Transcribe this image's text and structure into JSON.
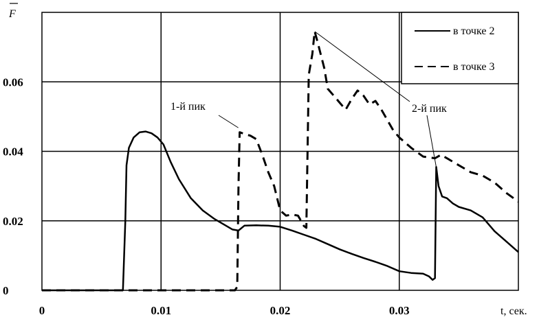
{
  "chart_data": {
    "type": "line",
    "ylabel": "F",
    "xlabel": "t, сек.",
    "xlim": [
      0,
      0.04
    ],
    "ylim": [
      0,
      0.08
    ],
    "x_ticks": [
      0,
      0.01,
      0.02,
      0.03
    ],
    "x_tick_labels": [
      "0",
      "0.01",
      "0.02",
      "0.03"
    ],
    "y_ticks": [
      0,
      0.02,
      0.04,
      0.06
    ],
    "y_tick_labels": [
      "0",
      "0.02",
      "0.04",
      "0.06"
    ],
    "grid": true,
    "legend_position": "top-right",
    "annotations": [
      {
        "text": "1-й пик",
        "target_series": 1,
        "target": [
          0.0166,
          0.046
        ]
      },
      {
        "text": "2-й пик",
        "targets": [
          [
            0.0229,
            0.0745
          ],
          [
            0.0331,
            0.0355
          ]
        ]
      }
    ],
    "series": [
      {
        "name": "в точке 2",
        "style": "solid",
        "x": [
          0,
          0.0068,
          0.007,
          0.0071,
          0.0073,
          0.0077,
          0.0082,
          0.0087,
          0.0092,
          0.0097,
          0.0102,
          0.0108,
          0.0115,
          0.0125,
          0.0135,
          0.0145,
          0.0155,
          0.016,
          0.0165,
          0.017,
          0.018,
          0.019,
          0.02,
          0.021,
          0.022,
          0.023,
          0.024,
          0.025,
          0.026,
          0.027,
          0.028,
          0.029,
          0.03,
          0.031,
          0.032,
          0.0325,
          0.0328,
          0.033,
          0.0331,
          0.0333,
          0.0336,
          0.034,
          0.0345,
          0.035,
          0.036,
          0.037,
          0.038,
          0.039,
          0.04
        ],
        "y": [
          0,
          0,
          0.02,
          0.036,
          0.041,
          0.044,
          0.0455,
          0.0457,
          0.0452,
          0.044,
          0.042,
          0.037,
          0.032,
          0.0265,
          0.023,
          0.0205,
          0.0185,
          0.0175,
          0.0172,
          0.0186,
          0.0187,
          0.0186,
          0.0183,
          0.0172,
          0.016,
          0.0148,
          0.0133,
          0.0118,
          0.0105,
          0.0093,
          0.0082,
          0.007,
          0.0055,
          0.005,
          0.0048,
          0.004,
          0.003,
          0.0035,
          0.0355,
          0.03,
          0.027,
          0.0265,
          0.025,
          0.024,
          0.023,
          0.021,
          0.017,
          0.014,
          0.011
        ]
      },
      {
        "name": "в точке 3",
        "style": "dashed",
        "x": [
          0,
          0.0162,
          0.0164,
          0.0165,
          0.0166,
          0.017,
          0.0175,
          0.018,
          0.0185,
          0.019,
          0.0195,
          0.02,
          0.0205,
          0.021,
          0.0215,
          0.022,
          0.0222,
          0.0224,
          0.0227,
          0.0229,
          0.0231,
          0.0234,
          0.0237,
          0.024,
          0.0245,
          0.025,
          0.0255,
          0.026,
          0.0265,
          0.027,
          0.0275,
          0.028,
          0.0285,
          0.029,
          0.0295,
          0.03,
          0.031,
          0.032,
          0.033,
          0.0335,
          0.034,
          0.035,
          0.036,
          0.037,
          0.038,
          0.039,
          0.04
        ],
        "y": [
          0,
          0,
          0.001,
          0.03,
          0.0455,
          0.045,
          0.0445,
          0.0435,
          0.039,
          0.034,
          0.03,
          0.023,
          0.0215,
          0.0218,
          0.0215,
          0.0185,
          0.018,
          0.062,
          0.068,
          0.0745,
          0.072,
          0.068,
          0.064,
          0.058,
          0.056,
          0.054,
          0.052,
          0.055,
          0.0575,
          0.056,
          0.0535,
          0.0545,
          0.052,
          0.049,
          0.046,
          0.044,
          0.041,
          0.0385,
          0.038,
          0.039,
          0.038,
          0.036,
          0.034,
          0.033,
          0.031,
          0.028,
          0.0255
        ]
      }
    ]
  }
}
